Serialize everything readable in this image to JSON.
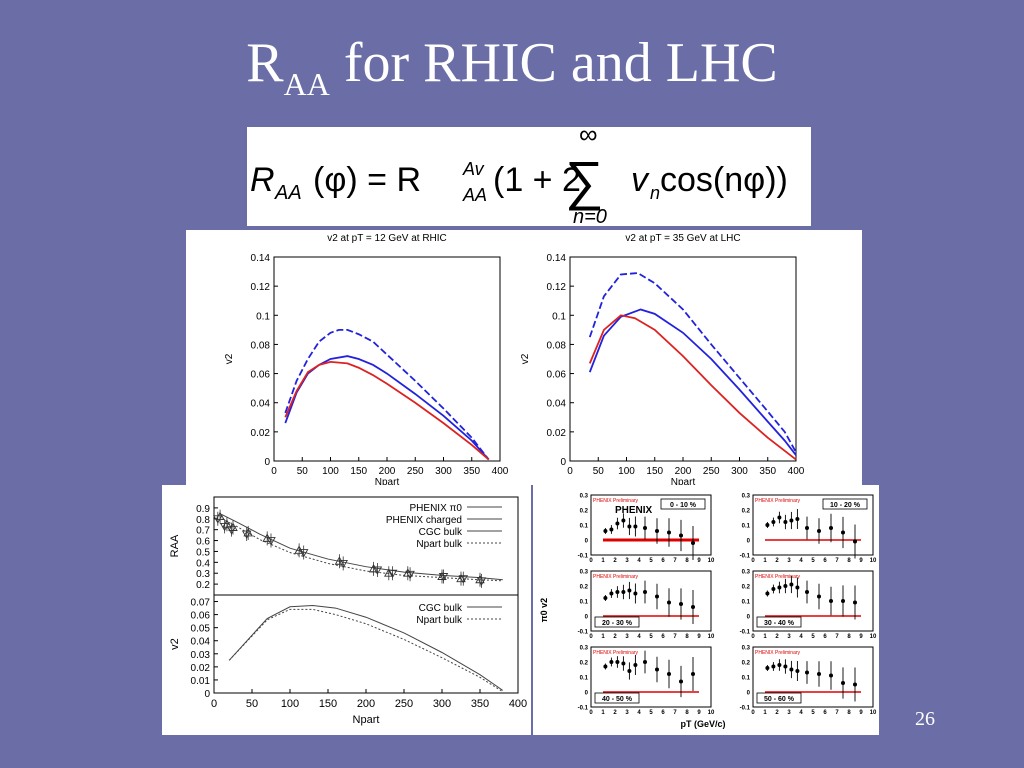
{
  "slide": {
    "title_main": "R",
    "title_sub": "AA",
    "title_rest": " for RHIC and LHC",
    "page_number": "26",
    "background_color": "#6b6da6"
  },
  "formula": {
    "lhs": "R",
    "lhs_sub": "AA",
    "lhs_arg": "(φ) = R",
    "rhs_sup": "Av",
    "rhs_sub": "AA",
    "rhs_body": "(1 + 2",
    "sigma": "∑",
    "sum_upper": "∞",
    "sum_lower": "n=0",
    "term": "v",
    "term_sub": "n",
    "term_rest": " cos(nφ))"
  },
  "chart_data": [
    {
      "type": "line",
      "title": "v2 at pT = 12 GeV at RHIC",
      "xlabel": "Npart",
      "ylabel": "v2",
      "xlim": [
        0,
        400
      ],
      "ylim": [
        0,
        0.14
      ],
      "x_ticks": [
        "0",
        "50",
        "100",
        "150",
        "200",
        "250",
        "300",
        "350",
        "400"
      ],
      "y_ticks": [
        "0",
        "0.02",
        "0.04",
        "0.06",
        "0.08",
        "0.1",
        "0.12",
        "0.14"
      ],
      "series": [
        {
          "color": "#2222dd",
          "style": "dashed",
          "x": [
            20,
            40,
            60,
            80,
            100,
            115,
            130,
            150,
            175,
            200,
            250,
            300,
            350,
            380
          ],
          "values": [
            0.033,
            0.055,
            0.07,
            0.082,
            0.088,
            0.09,
            0.09,
            0.087,
            0.082,
            0.073,
            0.055,
            0.036,
            0.016,
            0.001
          ]
        },
        {
          "color": "#2222dd",
          "style": "solid",
          "x": [
            20,
            40,
            60,
            80,
            100,
            130,
            150,
            175,
            200,
            250,
            300,
            350,
            380
          ],
          "values": [
            0.026,
            0.047,
            0.06,
            0.066,
            0.07,
            0.072,
            0.07,
            0.066,
            0.06,
            0.046,
            0.031,
            0.014,
            0.001
          ]
        },
        {
          "color": "#dd2222",
          "style": "solid",
          "x": [
            20,
            40,
            60,
            80,
            100,
            130,
            150,
            175,
            200,
            250,
            300,
            350,
            380
          ],
          "values": [
            0.03,
            0.048,
            0.061,
            0.066,
            0.068,
            0.067,
            0.064,
            0.059,
            0.053,
            0.04,
            0.026,
            0.011,
            0.001
          ]
        }
      ]
    },
    {
      "type": "line",
      "title": "v2 at pT = 35 GeV at LHC",
      "xlabel": "Npart",
      "ylabel": "v2",
      "xlim": [
        0,
        400
      ],
      "ylim": [
        0,
        0.14
      ],
      "x_ticks": [
        "0",
        "50",
        "100",
        "150",
        "200",
        "250",
        "300",
        "350",
        "400"
      ],
      "y_ticks": [
        "0",
        "0.02",
        "0.04",
        "0.06",
        "0.08",
        "0.1",
        "0.12",
        "0.14"
      ],
      "series": [
        {
          "color": "#2222dd",
          "style": "dashed",
          "x": [
            35,
            60,
            90,
            120,
            150,
            200,
            250,
            300,
            350,
            380,
            400
          ],
          "values": [
            0.085,
            0.113,
            0.128,
            0.129,
            0.122,
            0.104,
            0.08,
            0.057,
            0.034,
            0.02,
            0.006
          ]
        },
        {
          "color": "#2222dd",
          "style": "solid",
          "x": [
            35,
            60,
            90,
            125,
            150,
            200,
            250,
            300,
            350,
            380,
            400
          ],
          "values": [
            0.061,
            0.086,
            0.099,
            0.104,
            0.101,
            0.088,
            0.07,
            0.049,
            0.027,
            0.014,
            0.004
          ]
        },
        {
          "color": "#dd2222",
          "style": "solid",
          "x": [
            35,
            60,
            90,
            115,
            150,
            200,
            250,
            300,
            350,
            380,
            400
          ],
          "values": [
            0.067,
            0.09,
            0.1,
            0.098,
            0.09,
            0.072,
            0.052,
            0.033,
            0.016,
            0.007,
            0.001
          ]
        }
      ]
    },
    {
      "type": "line",
      "title": "",
      "xlabel": "",
      "ylabel": "RAA",
      "xlim": [
        0,
        400
      ],
      "ylim": [
        0.1,
        1.0
      ],
      "y_ticks": [
        "0.9",
        "0.8",
        "0.7",
        "0.6",
        "0.5",
        "0.4",
        "0.3",
        "0.2"
      ],
      "legend": [
        "PHENIX π0",
        "PHENIX charged",
        "CGC bulk",
        "Npart bulk"
      ],
      "series": [
        {
          "name": "CGC bulk",
          "style": "solid",
          "x": [
            10,
            30,
            60,
            100,
            150,
            200,
            250,
            300,
            350,
            380
          ],
          "values": [
            0.84,
            0.77,
            0.66,
            0.53,
            0.43,
            0.36,
            0.31,
            0.28,
            0.26,
            0.24
          ]
        },
        {
          "name": "Npart bulk",
          "style": "dotted",
          "x": [
            10,
            30,
            60,
            100,
            150,
            200,
            250,
            300,
            350,
            380
          ],
          "values": [
            0.8,
            0.73,
            0.61,
            0.49,
            0.39,
            0.32,
            0.28,
            0.26,
            0.24,
            0.23
          ]
        },
        {
          "name": "PHENIX π0",
          "marker": "triangle-up",
          "x": [
            8,
            17,
            25,
            45,
            70,
            112,
            165,
            210,
            230,
            255,
            300,
            325,
            350
          ],
          "values": [
            0.82,
            0.75,
            0.72,
            0.67,
            0.62,
            0.51,
            0.41,
            0.34,
            0.3,
            0.3,
            0.27,
            0.25,
            0.24
          ]
        },
        {
          "name": "PHENIX charged",
          "marker": "triangle-down",
          "x": [
            5,
            14,
            23,
            43,
            75,
            118,
            170,
            215,
            235,
            258,
            302,
            328,
            352
          ],
          "values": [
            0.8,
            0.73,
            0.7,
            0.66,
            0.6,
            0.49,
            0.39,
            0.33,
            0.3,
            0.29,
            0.27,
            0.25,
            0.23
          ]
        }
      ]
    },
    {
      "type": "line",
      "title": "",
      "xlabel": "Npart",
      "ylabel": "v2",
      "xlim": [
        0,
        400
      ],
      "ylim": [
        0,
        0.075
      ],
      "x_ticks": [
        "0",
        "50",
        "100",
        "150",
        "200",
        "250",
        "300",
        "350",
        "400"
      ],
      "y_ticks": [
        "0.07",
        "0.06",
        "0.05",
        "0.04",
        "0.03",
        "0.02",
        "0.01",
        "0"
      ],
      "legend": [
        "CGC bulk",
        "Npart bulk"
      ],
      "series": [
        {
          "name": "CGC bulk",
          "style": "solid",
          "x": [
            20,
            70,
            100,
            130,
            160,
            200,
            250,
            300,
            350,
            380
          ],
          "values": [
            0.025,
            0.057,
            0.066,
            0.067,
            0.065,
            0.058,
            0.046,
            0.031,
            0.014,
            0.002
          ]
        },
        {
          "name": "Npart bulk",
          "style": "dotted",
          "x": [
            20,
            70,
            100,
            130,
            160,
            200,
            250,
            300,
            350,
            380
          ],
          "values": [
            0.025,
            0.056,
            0.064,
            0.064,
            0.06,
            0.053,
            0.041,
            0.027,
            0.012,
            0.001
          ]
        }
      ]
    },
    {
      "type": "scatter",
      "title": "",
      "ylabel": "π0 v2",
      "xlabel": "pT (GeV/c)",
      "xlim": [
        0,
        10
      ],
      "ylim": [
        -0.1,
        0.3
      ],
      "preliminary_label": "PHENIX Preliminary",
      "logo": "PHENIX",
      "y_ticks": [
        "0.3",
        "0.2",
        "0.1",
        "0",
        "-0.1"
      ],
      "x_ticks": [
        "0",
        "1",
        "2",
        "3",
        "4",
        "5",
        "6",
        "7",
        "8",
        "9",
        "10"
      ],
      "panels": [
        {
          "label": "0 - 10 %",
          "x": [
            1.2,
            1.7,
            2.2,
            2.7,
            3.2,
            3.7,
            4.5,
            5.5,
            6.5,
            7.5,
            8.5
          ],
          "values": [
            0.06,
            0.07,
            0.11,
            0.13,
            0.09,
            0.09,
            0.08,
            0.06,
            0.05,
            0.03,
            -0.02
          ]
        },
        {
          "label": "10 - 20 %",
          "x": [
            1.2,
            1.7,
            2.2,
            2.7,
            3.2,
            3.7,
            4.5,
            5.5,
            6.5,
            7.5,
            8.5
          ],
          "values": [
            0.1,
            0.12,
            0.15,
            0.12,
            0.13,
            0.14,
            0.08,
            0.06,
            0.08,
            0.05,
            -0.01
          ]
        },
        {
          "label": "20 - 30 %",
          "x": [
            1.2,
            1.7,
            2.2,
            2.7,
            3.2,
            3.7,
            4.5,
            5.5,
            6.5,
            7.5,
            8.5
          ],
          "values": [
            0.12,
            0.15,
            0.16,
            0.16,
            0.17,
            0.15,
            0.16,
            0.13,
            0.09,
            0.08,
            0.06
          ]
        },
        {
          "label": "30 - 40 %",
          "x": [
            1.2,
            1.7,
            2.2,
            2.7,
            3.2,
            3.7,
            4.5,
            5.5,
            6.5,
            7.5,
            8.5
          ],
          "values": [
            0.15,
            0.18,
            0.19,
            0.2,
            0.21,
            0.19,
            0.16,
            0.13,
            0.1,
            0.1,
            0.09
          ]
        },
        {
          "label": "40 - 50 %",
          "x": [
            1.2,
            1.7,
            2.2,
            2.7,
            3.2,
            3.7,
            4.5,
            5.5,
            6.5,
            7.5,
            8.5
          ],
          "values": [
            0.17,
            0.2,
            0.2,
            0.19,
            0.14,
            0.18,
            0.2,
            0.15,
            0.12,
            0.07,
            0.12
          ]
        },
        {
          "label": "50 - 60 %",
          "x": [
            1.2,
            1.7,
            2.2,
            2.7,
            3.2,
            3.7,
            4.5,
            5.5,
            6.5,
            7.5,
            8.5
          ],
          "values": [
            0.16,
            0.17,
            0.18,
            0.17,
            0.15,
            0.14,
            0.13,
            0.12,
            0.11,
            0.06,
            0.05
          ]
        }
      ]
    }
  ]
}
